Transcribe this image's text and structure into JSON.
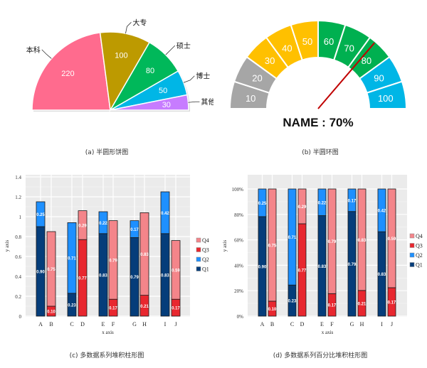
{
  "captions": {
    "a": "(a) 半圆形饼图",
    "b": "(b) 半圆环图",
    "c": "(c) 多数据系列堆积柱形图",
    "d": "(d) 多数据系列百分比堆积柱形图"
  },
  "chart_data": [
    {
      "id": "a",
      "type": "pie",
      "title": "半圆形饼图",
      "variant": "semicircle",
      "categories": [
        "本科",
        "大专",
        "硕士",
        "博士",
        "其他"
      ],
      "values": [
        220,
        100,
        80,
        50,
        30
      ],
      "colors": [
        "#ff6b8e",
        "#bd9a00",
        "#00b85a",
        "#00b6e6",
        "#c77cff"
      ]
    },
    {
      "id": "b",
      "type": "gauge",
      "title": "半圆环图",
      "segments": [
        10,
        20,
        30,
        40,
        50,
        60,
        70,
        80,
        90,
        100
      ],
      "segment_colors": [
        "#a6a6a6",
        "#a6a6a6",
        "#ffc000",
        "#ffc000",
        "#ffc000",
        "#00b050",
        "#00b050",
        "#00b050",
        "#00b6e6",
        "#00b6e6"
      ],
      "value": 70,
      "label": "NAME : 70%",
      "needle_color": "#c00000"
    },
    {
      "id": "c",
      "type": "bar",
      "stacked": true,
      "title": "多数据系列堆积柱形图",
      "xlabel": "x axis",
      "ylabel": "y axis",
      "ylim": [
        0,
        1.4
      ],
      "yticks": [
        "0",
        "0.2",
        "0.4",
        "0.6",
        "0.8",
        "1",
        "1.2",
        "1.4"
      ],
      "categories": [
        "A",
        "B",
        "C",
        "D",
        "E",
        "F",
        "G",
        "H",
        "I",
        "J"
      ],
      "legend": [
        "Q4",
        "Q3",
        "Q2",
        "Q1"
      ],
      "legend_position": "right",
      "grid": true,
      "series": [
        {
          "name": "Q1",
          "color": "#053d7a",
          "values": [
            0.9,
            0,
            0.23,
            0,
            0.83,
            0,
            0.79,
            0,
            0.83,
            0
          ]
        },
        {
          "name": "Q2",
          "color": "#1e90ff",
          "values": [
            0.25,
            0,
            0.71,
            0,
            0.22,
            0,
            0.17,
            0,
            0.42,
            0
          ]
        },
        {
          "name": "Q3",
          "color": "#e8272f",
          "values": [
            0,
            0.1,
            0,
            0.77,
            0,
            0.17,
            0,
            0.21,
            0,
            0.17
          ]
        },
        {
          "name": "Q4",
          "color": "#f4858a",
          "values": [
            0,
            0.75,
            0,
            0.29,
            0,
            0.79,
            0,
            0.83,
            0,
            0.59
          ]
        }
      ]
    },
    {
      "id": "d",
      "type": "bar",
      "stacked": true,
      "percent": true,
      "title": "多数据系列百分比堆积柱形图",
      "xlabel": "x axis",
      "ylabel": "y axis",
      "ylim": [
        0,
        100
      ],
      "yticks": [
        "0%",
        "20%",
        "40%",
        "60%",
        "80%",
        "100%"
      ],
      "categories": [
        "A",
        "B",
        "C",
        "D",
        "E",
        "F",
        "G",
        "H",
        "I",
        "J"
      ],
      "legend": [
        "Q4",
        "Q3",
        "Q2",
        "Q1"
      ],
      "legend_position": "right",
      "grid": true,
      "series": [
        {
          "name": "Q1",
          "color": "#053d7a",
          "values": [
            0.9,
            0,
            0.23,
            0,
            0.83,
            0,
            0.79,
            0,
            0.83,
            0
          ]
        },
        {
          "name": "Q2",
          "color": "#1e90ff",
          "values": [
            0.25,
            0,
            0.71,
            0,
            0.22,
            0,
            0.17,
            0,
            0.42,
            0
          ]
        },
        {
          "name": "Q3",
          "color": "#e8272f",
          "values": [
            0,
            0.1,
            0,
            0.77,
            0,
            0.17,
            0,
            0.21,
            0,
            0.17
          ]
        },
        {
          "name": "Q4",
          "color": "#f4858a",
          "values": [
            0,
            0.75,
            0,
            0.29,
            0,
            0.79,
            0,
            0.83,
            0,
            0.59
          ]
        }
      ]
    }
  ]
}
